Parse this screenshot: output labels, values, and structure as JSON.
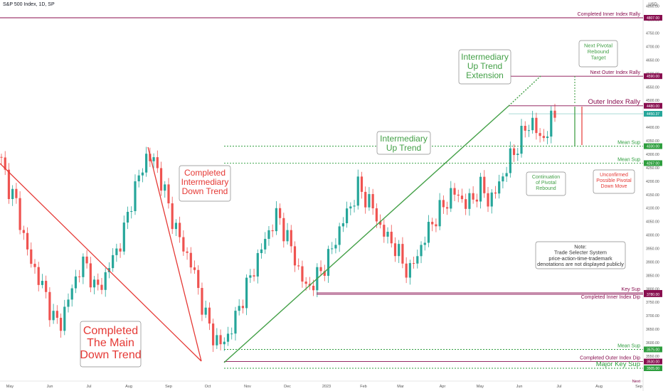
{
  "header": {
    "symbol_label": "S&P 500 Index, 1D, SP",
    "currency": "USD"
  },
  "chart_data": {
    "type": "candlestick",
    "y_axis": {
      "min": 3490,
      "max": 4920,
      "ticks": [
        4850,
        4800,
        4750,
        4700,
        4650,
        4600,
        4550,
        4500,
        4450,
        4400,
        4350,
        4300,
        4250,
        4200,
        4150,
        4100,
        4050,
        4000,
        3950,
        3900,
        3850,
        3800,
        3750,
        3700,
        3650,
        3600,
        3550,
        3500
      ]
    },
    "x_axis": {
      "labels": [
        "May",
        "Jun",
        "Jul",
        "Aug",
        "Sep",
        "Oct",
        "Nov",
        "Dec",
        "2023",
        "Feb",
        "Mar",
        "Apr",
        "May",
        "Jun",
        "Jul",
        "Aug",
        "Sep"
      ]
    },
    "close_path": [
      4270,
      4180,
      4120,
      4000,
      3900,
      3850,
      3780,
      3700,
      3660,
      3750,
      3820,
      3900,
      3870,
      3790,
      3830,
      3900,
      3950,
      4030,
      4150,
      4220,
      4300,
      4270,
      4200,
      4100,
      4020,
      3950,
      3900,
      3800,
      3700,
      3630,
      3590,
      3620,
      3680,
      3760,
      3830,
      3900,
      3970,
      4030,
      4080,
      4000,
      3940,
      3850,
      3800,
      3830,
      3870,
      3920,
      3990,
      4060,
      4110,
      4180,
      4140,
      4100,
      4030,
      3990,
      3960,
      3900,
      3860,
      3920,
      3980,
      4040,
      4080,
      4120,
      4160,
      4140,
      4110,
      4150,
      4180,
      4120,
      4170,
      4230,
      4290,
      4340,
      4400,
      4420,
      4350,
      4390,
      4450
    ],
    "price_levels": [
      {
        "value": 4807,
        "tag": "4807.00",
        "label": "Completed Inner Index Rally",
        "color": "#880e4f"
      },
      {
        "value": 4590,
        "tag": "4590.00",
        "label": "Next Outer Index Rally",
        "color": "#880e4f"
      },
      {
        "value": 4480,
        "tag": "4480.00",
        "label": "Outer Index Rally",
        "color": "#880e4f"
      },
      {
        "value": 4450.37,
        "tag": "4450.37",
        "label": "",
        "color": "#26a69a"
      },
      {
        "value": 4330,
        "tag": "4330.00",
        "label": "Mean Sup",
        "color": "#2e9e3e"
      },
      {
        "value": 4267,
        "tag": "4267.00",
        "label": "Mean Sup",
        "color": "#2e9e3e"
      },
      {
        "value": 3785,
        "tag": "3785.00",
        "label": "Key Sup",
        "color": "#880e4f"
      },
      {
        "value": 3780,
        "tag": "3780.00",
        "label": "Completed Inner Index Dip",
        "color": "#880e4f"
      },
      {
        "value": 3575,
        "tag": "3575.00",
        "label": "Mean Sup",
        "color": "#2e9e3e"
      },
      {
        "value": 3530,
        "tag": "3530.00",
        "label": "Completed Outer Index Dip",
        "color": "#880e4f"
      },
      {
        "value": 3505,
        "tag": "3505.00",
        "label": "Major Key Sup",
        "color": "#2e9e3e"
      }
    ],
    "annotations": {
      "main_down": "Completed The Main Down Trend",
      "intermediate_down": "Completed Intermediary Down Trend",
      "intermediate_up": "Intermediary Up Trend",
      "intermediate_up_ext": "Intermediary Up Trend Extension",
      "next_pivot": "Next Pivotal Rebound Target",
      "continuation": "Continuation of Pivotal Rebound",
      "unconfirmed": "Unconfirmed Possible Pivotal Down Move",
      "note": "Note: Trade Selecter System price-action-time-trademark denotations are not displayed publicly",
      "next_label": "Next"
    },
    "colors": {
      "up": "#26a69a",
      "down": "#ef5350",
      "red_line": "#e53935",
      "green_line": "#43a047",
      "maroon": "#880e4f"
    }
  }
}
